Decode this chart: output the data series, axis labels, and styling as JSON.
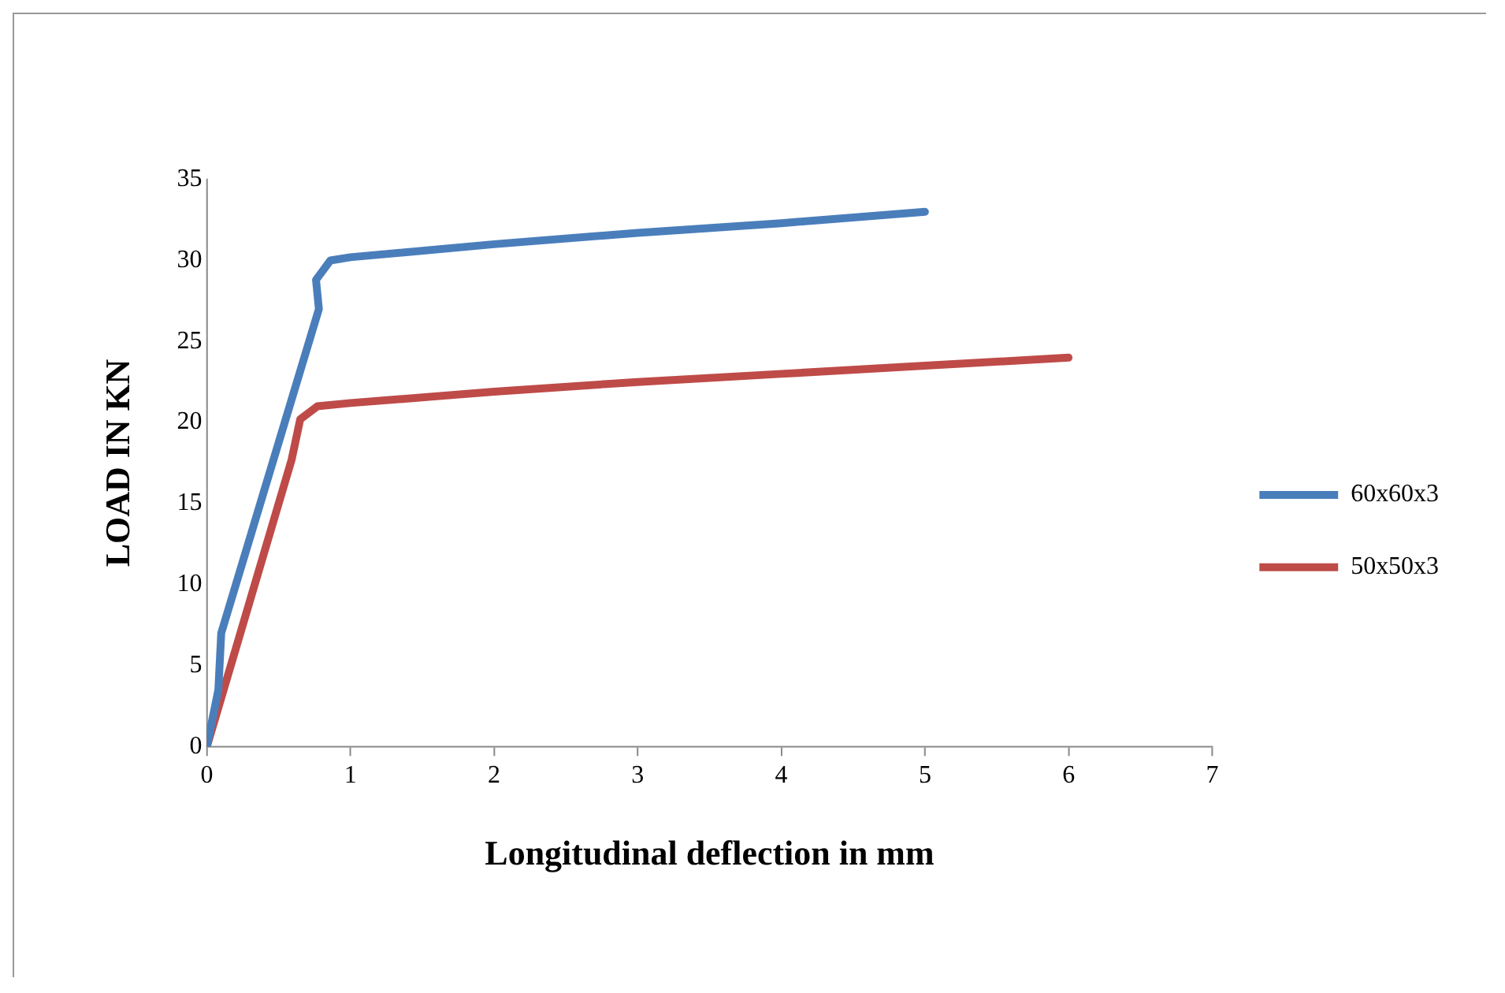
{
  "chart_data": {
    "type": "line",
    "xlabel": "Longitudinal deflection in mm",
    "ylabel": "LOAD IN KN",
    "xlim": [
      0,
      7
    ],
    "xticks": [
      0,
      1,
      2,
      3,
      4,
      5,
      6,
      7
    ],
    "ylim": [
      0,
      35
    ],
    "yticks": [
      0,
      5,
      10,
      15,
      20,
      25,
      30,
      35
    ],
    "grid": false,
    "legend": "right",
    "marker": "none",
    "line_style": "solid",
    "series": [
      {
        "name": "60x60x3",
        "color": "#4a7ebb",
        "x": [
          0,
          0.08,
          0.1,
          0.78,
          0.76,
          0.86,
          1,
          2,
          3,
          4,
          5
        ],
        "values": [
          0,
          3.5,
          7,
          27,
          28.8,
          30,
          30.2,
          31,
          31.7,
          32.3,
          33
        ]
      },
      {
        "name": "50x50x3",
        "color": "#be4b48",
        "x": [
          0,
          0.59,
          0.65,
          0.77,
          1,
          2,
          3,
          4,
          5,
          6
        ],
        "values": [
          0,
          17.7,
          20.2,
          21,
          21.2,
          21.9,
          22.5,
          23,
          23.5,
          24
        ]
      }
    ]
  }
}
